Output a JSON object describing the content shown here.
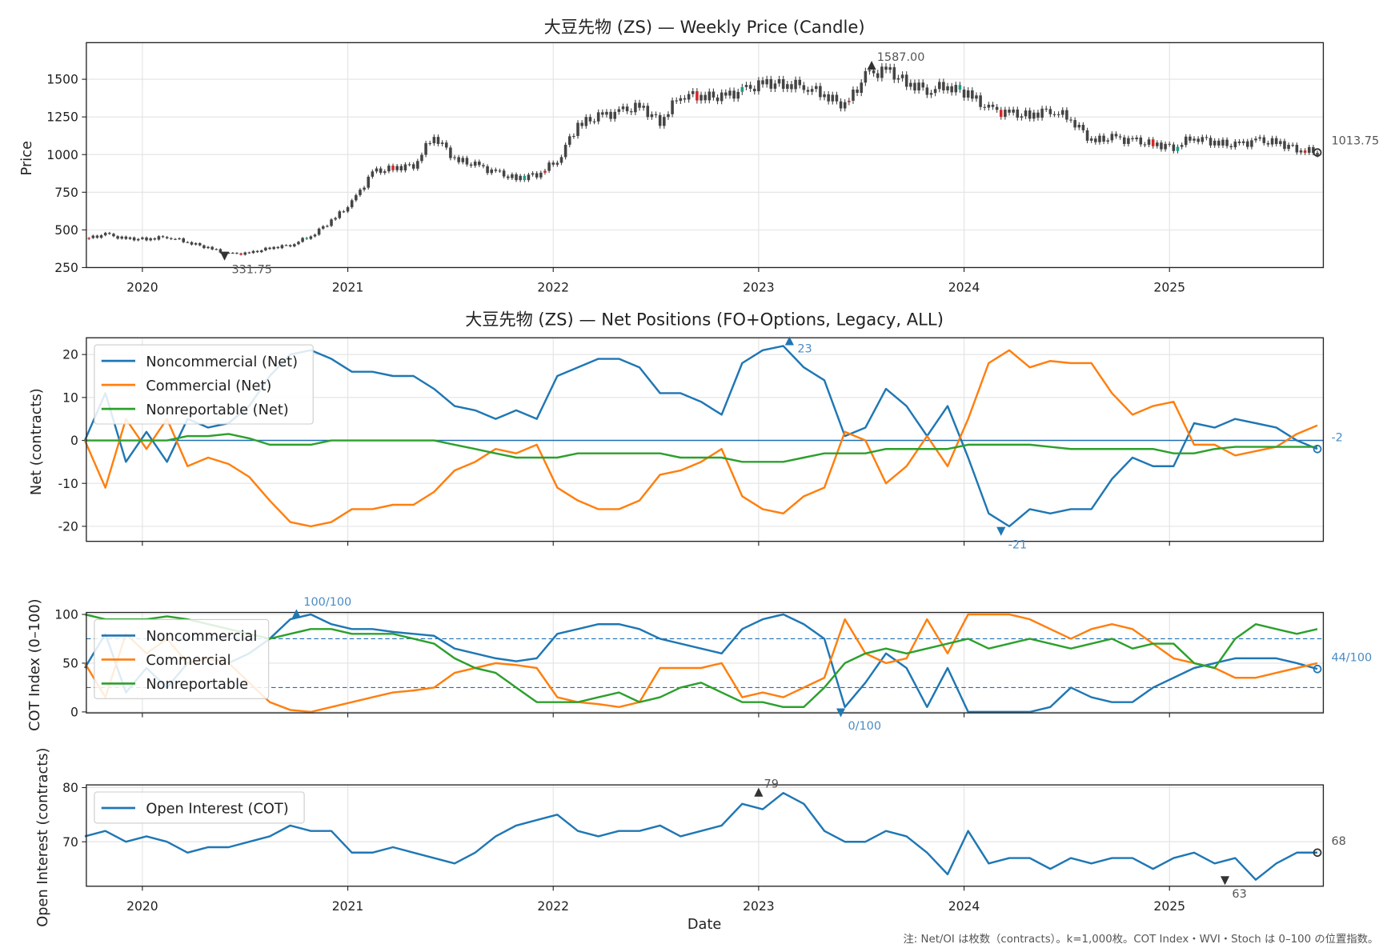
{
  "chart_data": [
    {
      "type": "candlestick",
      "title": "大豆先物 (ZS) — Weekly Price (Candle)",
      "ylabel": "Price",
      "ylim": [
        250,
        1743
      ],
      "yticks": [
        "250",
        "500",
        "750",
        "1000",
        "1250",
        "1500"
      ],
      "xticks": [
        "2020",
        "2021",
        "2022",
        "2023",
        "2024",
        "2025"
      ],
      "xlim": [
        2019.727,
        2025.749
      ],
      "x_start": 2019.72,
      "x_step": 0.1,
      "close": [
        440,
        470,
        440,
        440,
        455,
        420,
        380,
        340,
        345,
        380,
        400,
        460,
        560,
        680,
        880,
        910,
        930,
        1130,
        970,
        930,
        880,
        840,
        870,
        960,
        1200,
        1250,
        1280,
        1320,
        1220,
        1400,
        1390,
        1380,
        1420,
        1470,
        1470,
        1460,
        1400,
        1320,
        1520,
        1560,
        1480,
        1430,
        1460,
        1400,
        1300,
        1270,
        1260,
        1300,
        1240,
        1090,
        1110,
        1090,
        1070,
        1050,
        1120,
        1080,
        1060,
        1090,
        1080,
        1040,
        1013.75
      ],
      "annotations": {
        "max_label": "1587.00",
        "max_value": 1587,
        "max_x": 2023.55,
        "min_label": "331.75",
        "min_value": 331.75,
        "min_x": 2020.4,
        "last_label": "1013.75"
      }
    },
    {
      "type": "line",
      "title": "大豆先物 (ZS) — Net Positions (FO+Options, Legacy, ALL)",
      "ylabel": "Net (contracts)",
      "ylim": [
        -23.5,
        23.9
      ],
      "yticks": [
        "-20",
        "-10",
        "0",
        "10",
        "20"
      ],
      "x_start": 2019.72,
      "x_step": 0.1,
      "legend_position": "top-left",
      "series": [
        {
          "name": "Noncommercial (Net)",
          "color": "#1f77b4",
          "values": [
            0,
            11,
            -5,
            2,
            -5,
            5,
            3,
            4,
            8,
            15,
            20,
            21,
            19,
            16,
            16,
            15,
            15,
            12,
            8,
            7,
            5,
            7,
            5,
            15,
            17,
            19,
            19,
            17,
            11,
            11,
            9,
            6,
            18,
            21,
            22,
            17,
            14,
            1,
            3,
            12,
            8,
            1,
            8,
            -4,
            -17,
            -20,
            -16,
            -17,
            -16,
            -16,
            -9,
            -4,
            -6,
            -6,
            4,
            3,
            5,
            4,
            3,
            0,
            -2
          ]
        },
        {
          "name": "Commercial (Net)",
          "color": "#ff7f0e",
          "values": [
            0,
            -11,
            5,
            -2,
            5,
            -6,
            -4,
            -5.5,
            -8.5,
            -14,
            -19,
            -20,
            -19,
            -16,
            -16,
            -15,
            -15,
            -12,
            -7,
            -5,
            -2,
            -3,
            -1,
            -11,
            -14,
            -16,
            -16,
            -14,
            -8,
            -7,
            -5,
            -2,
            -13,
            -16,
            -17,
            -13,
            -11,
            2,
            0,
            -10,
            -6,
            1,
            -6,
            5,
            18,
            21,
            17,
            18.5,
            18,
            18,
            11,
            6,
            8,
            9,
            -1,
            -1,
            -3.5,
            -2.5,
            -1.5,
            1.5,
            3.5
          ]
        },
        {
          "name": "Nonreportable (Net)",
          "color": "#2ca02c",
          "values": [
            0,
            0,
            0,
            0,
            0,
            1,
            1,
            1.5,
            0.5,
            -1,
            -1,
            -1,
            0,
            0,
            0,
            0,
            0,
            0,
            -1,
            -2,
            -3,
            -4,
            -4,
            -4,
            -3,
            -3,
            -3,
            -3,
            -3,
            -4,
            -4,
            -4,
            -5,
            -5,
            -5,
            -4,
            -3,
            -3,
            -3,
            -2,
            -2,
            -2,
            -2,
            -1,
            -1,
            -1,
            -1,
            -1.5,
            -2,
            -2,
            -2,
            -2,
            -2,
            -3,
            -3,
            -2,
            -1.5,
            -1.5,
            -1.5,
            -1.5,
            -1.5
          ]
        }
      ],
      "annotations": {
        "max_label": "23",
        "max_value": 23,
        "max_x": 2023.15,
        "min_label": "-21",
        "min_value": -21,
        "min_x": 2024.18,
        "last_label": "-2"
      }
    },
    {
      "type": "line",
      "ylabel": "COT Index (0–100)",
      "ylim": [
        -1,
        102
      ],
      "yticks": [
        "0",
        "50",
        "100"
      ],
      "reference_lines": [
        25,
        75
      ],
      "x_start": 2019.72,
      "x_step": 0.1,
      "legend_position": "top-left",
      "series": [
        {
          "name": "Noncommercial",
          "color": "#1f77b4",
          "values": [
            45,
            80,
            20,
            45,
            25,
            50,
            55,
            50,
            60,
            75,
            95,
            100,
            90,
            85,
            85,
            82,
            80,
            78,
            65,
            60,
            55,
            52,
            55,
            80,
            85,
            90,
            90,
            85,
            75,
            70,
            65,
            60,
            85,
            95,
            100,
            90,
            75,
            5,
            30,
            60,
            45,
            5,
            45,
            0,
            0,
            0,
            0,
            5,
            25,
            15,
            10,
            10,
            25,
            35,
            45,
            50,
            55,
            55,
            55,
            50,
            44
          ]
        },
        {
          "name": "Commercial",
          "color": "#ff7f0e",
          "values": [
            50,
            15,
            80,
            60,
            75,
            50,
            55,
            50,
            30,
            10,
            2,
            0,
            5,
            10,
            15,
            20,
            22,
            25,
            40,
            45,
            50,
            48,
            45,
            15,
            10,
            8,
            5,
            10,
            45,
            45,
            45,
            50,
            15,
            20,
            15,
            25,
            35,
            95,
            60,
            50,
            55,
            95,
            60,
            100,
            100,
            100,
            95,
            85,
            75,
            85,
            90,
            85,
            70,
            55,
            50,
            45,
            35,
            35,
            40,
            45,
            50
          ]
        },
        {
          "name": "Nonreportable",
          "color": "#2ca02c",
          "values": [
            100,
            95,
            95,
            95,
            98,
            95,
            90,
            85,
            80,
            75,
            80,
            85,
            85,
            80,
            80,
            80,
            75,
            70,
            55,
            45,
            40,
            25,
            10,
            10,
            10,
            15,
            20,
            10,
            15,
            25,
            30,
            20,
            10,
            10,
            5,
            5,
            25,
            50,
            60,
            65,
            60,
            65,
            70,
            75,
            65,
            70,
            75,
            70,
            65,
            70,
            75,
            65,
            70,
            70,
            50,
            45,
            75,
            90,
            85,
            80,
            85
          ]
        }
      ],
      "annotations": {
        "max_label": "100/100",
        "max_value": 100,
        "max_x": 2020.75,
        "min_label": "0/100",
        "min_value": 0,
        "min_x": 2023.4,
        "last_label": "44/100"
      }
    },
    {
      "type": "line",
      "ylabel": "Open Interest (contracts)",
      "xlabel": "Date",
      "ylim": [
        61.8,
        80.5
      ],
      "yticks": [
        "70",
        "80"
      ],
      "xticks": [
        "2020",
        "2021",
        "2022",
        "2023",
        "2024",
        "2025"
      ],
      "x_start": 2019.72,
      "x_step": 0.1,
      "legend_position": "top-left",
      "series": [
        {
          "name": "Open Interest (COT)",
          "color": "#1f77b4",
          "values": [
            71,
            72,
            70,
            71,
            70,
            68,
            69,
            69,
            70,
            71,
            73,
            72,
            72,
            68,
            68,
            69,
            68,
            67,
            66,
            68,
            71,
            73,
            74,
            75,
            72,
            71,
            72,
            72,
            73,
            71,
            72,
            73,
            77,
            76,
            79,
            77,
            72,
            70,
            70,
            72,
            71,
            68,
            64,
            72,
            66,
            67,
            67,
            65,
            67,
            66,
            67,
            67,
            65,
            67,
            68,
            66,
            67,
            63,
            66,
            68,
            68
          ]
        }
      ],
      "annotations": {
        "max_label": "79",
        "max_value": 79,
        "max_x": 2023.0,
        "min_label": "63",
        "min_value": 63,
        "min_x": 2025.27,
        "last_label": "68"
      }
    }
  ],
  "footnote": "注: Net/OI は枚数（contracts）。k=1,000枚。COT Index・WVI・Stoch は 0–100 の位置指数。"
}
